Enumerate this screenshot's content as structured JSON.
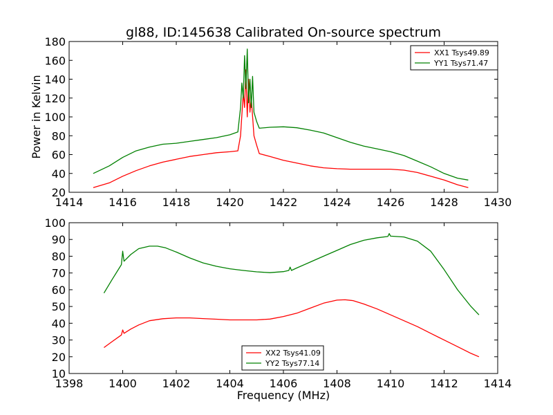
{
  "chart_data": [
    {
      "type": "line",
      "title": "gl88, ID:145638 Calibrated On-source spectrum",
      "xlabel": "",
      "ylabel": "Power in Kelvin",
      "xlim": [
        1414,
        1430
      ],
      "ylim": [
        20,
        180
      ],
      "xticks": [
        1414,
        1416,
        1418,
        1420,
        1422,
        1424,
        1426,
        1428,
        1430
      ],
      "yticks": [
        20,
        40,
        60,
        80,
        100,
        120,
        140,
        160,
        180
      ],
      "legend_position": "top-right",
      "grid": false,
      "series": [
        {
          "name": "XX1 Tsys49.89",
          "color": "#ff0000",
          "x": [
            1414.9,
            1415.5,
            1416,
            1416.5,
            1417,
            1417.5,
            1418,
            1418.5,
            1419,
            1419.5,
            1420,
            1420.3,
            1420.4,
            1420.5,
            1420.55,
            1420.6,
            1420.65,
            1420.7,
            1420.75,
            1420.8,
            1420.9,
            1421,
            1421.1,
            1421.5,
            1422,
            1422.5,
            1423,
            1423.5,
            1424,
            1424.5,
            1425,
            1425.5,
            1426,
            1426.5,
            1427,
            1427.5,
            1428,
            1428.5,
            1428.9
          ],
          "values": [
            25,
            30,
            37,
            43,
            48,
            52,
            55,
            58,
            60,
            62,
            63,
            64,
            80,
            125,
            110,
            150,
            100,
            140,
            105,
            120,
            80,
            70,
            61,
            58,
            54,
            51,
            48,
            46,
            45,
            44.5,
            44.5,
            44.5,
            44.5,
            43.5,
            41,
            37,
            33,
            28,
            25
          ]
        },
        {
          "name": "YY1 Tsys71.47",
          "color": "#008000",
          "x": [
            1414.9,
            1415.5,
            1416,
            1416.5,
            1417,
            1417.5,
            1418,
            1418.5,
            1419,
            1419.5,
            1420,
            1420.3,
            1420.4,
            1420.45,
            1420.5,
            1420.55,
            1420.6,
            1420.65,
            1420.7,
            1420.75,
            1420.8,
            1420.85,
            1420.9,
            1421,
            1421.1,
            1421.5,
            1422,
            1422.5,
            1423,
            1423.5,
            1424,
            1424.5,
            1425,
            1425.5,
            1426,
            1426.5,
            1427,
            1427.5,
            1428,
            1428.5,
            1428.9
          ],
          "values": [
            40,
            48,
            57,
            64,
            68,
            71,
            72,
            74,
            76,
            78,
            81,
            84,
            110,
            136,
            120,
            165,
            130,
            172,
            115,
            140,
            110,
            143,
            105,
            95,
            88,
            89,
            89.5,
            88.5,
            86,
            83,
            78,
            73,
            69,
            66,
            63,
            59,
            53,
            47,
            40,
            35,
            33
          ]
        }
      ]
    },
    {
      "type": "line",
      "title": "",
      "xlabel": "Frequency (MHz)",
      "ylabel": "",
      "xlim": [
        1398,
        1414
      ],
      "ylim": [
        10,
        100
      ],
      "xticks": [
        1398,
        1400,
        1402,
        1404,
        1406,
        1408,
        1410,
        1412,
        1414
      ],
      "yticks": [
        10,
        20,
        30,
        40,
        50,
        60,
        70,
        80,
        90,
        100
      ],
      "legend_position": "bottom-center",
      "grid": false,
      "series": [
        {
          "name": "XX2 Tsys41.09",
          "color": "#ff0000",
          "x": [
            1399.3,
            1399.6,
            1399.95,
            1400,
            1400.05,
            1400.3,
            1400.6,
            1401,
            1401.5,
            1402,
            1402.5,
            1403,
            1403.5,
            1404,
            1404.5,
            1405,
            1405.5,
            1406,
            1406.5,
            1407,
            1407.5,
            1408,
            1408.3,
            1408.6,
            1409,
            1409.5,
            1410,
            1410.5,
            1411,
            1411.5,
            1412,
            1412.5,
            1413,
            1413.3
          ],
          "values": [
            25.5,
            29,
            33,
            36,
            34,
            36.5,
            39,
            41.5,
            42.7,
            43.2,
            43.2,
            42.8,
            42.4,
            42,
            42,
            42,
            42.5,
            44,
            46,
            49,
            52,
            53.8,
            54,
            53.5,
            51.5,
            48.5,
            45,
            41.5,
            38,
            34,
            30,
            26,
            22,
            20
          ]
        },
        {
          "name": "YY2 Tsys77.14",
          "color": "#008000",
          "x": [
            1399.3,
            1399.6,
            1399.95,
            1400,
            1400.05,
            1400.3,
            1400.6,
            1401,
            1401.3,
            1401.6,
            1402,
            1402.5,
            1403,
            1403.5,
            1404,
            1404.5,
            1405,
            1405.5,
            1406,
            1406.2,
            1406.25,
            1406.3,
            1406.5,
            1407,
            1407.5,
            1408,
            1408.5,
            1409,
            1409.5,
            1409.9,
            1409.95,
            1410,
            1410.5,
            1411,
            1411.5,
            1412,
            1412.5,
            1413,
            1413.3
          ],
          "values": [
            58,
            66,
            75,
            83,
            77,
            81,
            84.5,
            86,
            86,
            85,
            82.5,
            79,
            76,
            74,
            72.5,
            71.5,
            70.7,
            70.2,
            70.8,
            71.5,
            73.5,
            71.5,
            73,
            76.5,
            80,
            83.5,
            87,
            89.5,
            91,
            91.8,
            93.5,
            92,
            91.5,
            89,
            83,
            72,
            60,
            50,
            45
          ]
        }
      ]
    }
  ]
}
